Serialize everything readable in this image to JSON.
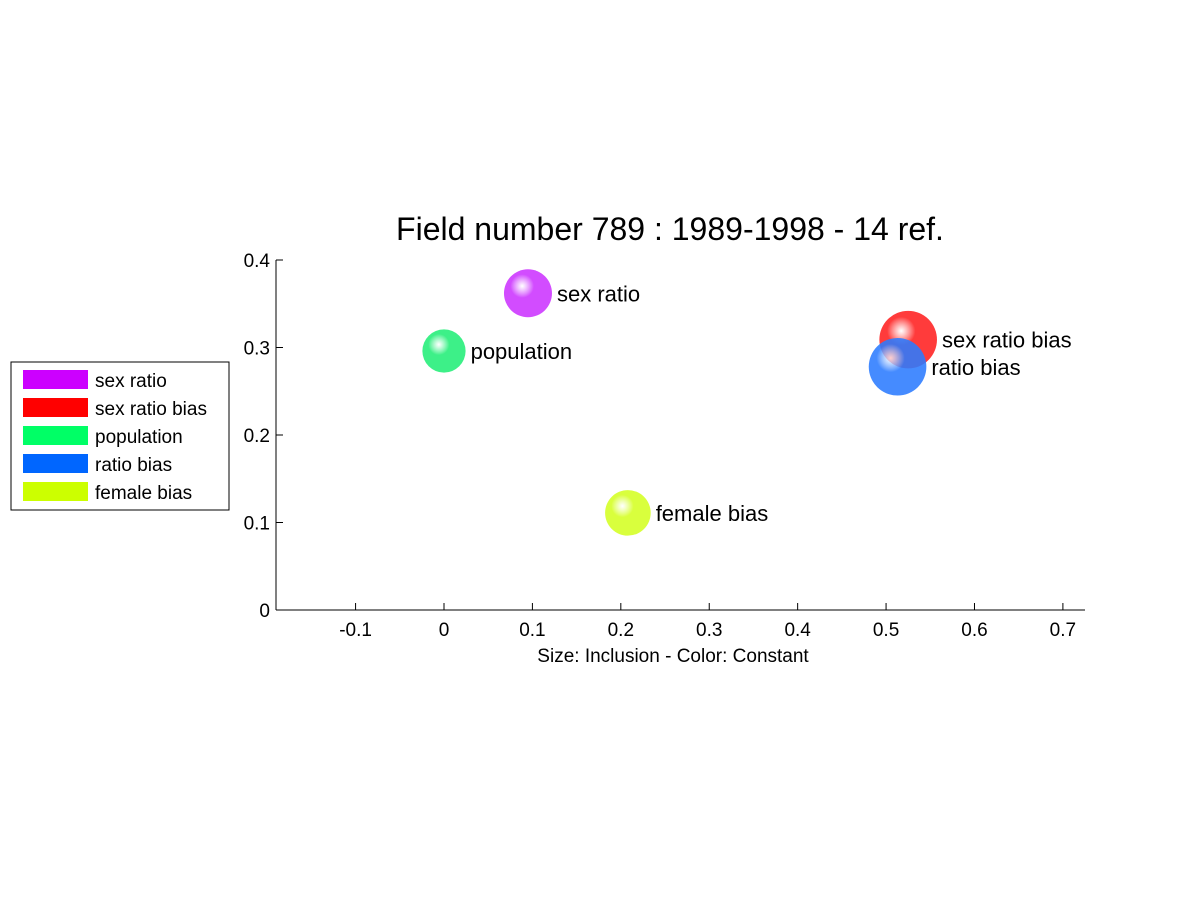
{
  "chart_data": {
    "type": "scatter",
    "title": "Field number 789 : 1989-1998  - 14 ref.",
    "xlabel": "Size: Inclusion - Color: Constant",
    "ylabel": "",
    "xlim": [
      -0.19,
      0.725
    ],
    "ylim": [
      0,
      0.4
    ],
    "xticks": [
      -0.1,
      0,
      0.1,
      0.2,
      0.3,
      0.4,
      0.5,
      0.6,
      0.7
    ],
    "xtick_labels": [
      "-0.1",
      "0",
      "0.1",
      "0.2",
      "0.3",
      "0.4",
      "0.5",
      "0.6",
      "0.7"
    ],
    "yticks": [
      0,
      0.1,
      0.2,
      0.3,
      0.4
    ],
    "ytick_labels": [
      "0",
      "0.1",
      "0.2",
      "0.3",
      "0.4"
    ],
    "grid": false,
    "legend_position": "left",
    "size_encoding": "Inclusion",
    "points": [
      {
        "label": "sex ratio",
        "x": 0.095,
        "y": 0.362,
        "size": 1.0,
        "color": "#cc33ff"
      },
      {
        "label": "population",
        "x": 0.0,
        "y": 0.296,
        "size": 0.9,
        "color": "#22ee77"
      },
      {
        "label": "sex ratio bias",
        "x": 0.525,
        "y": 0.309,
        "size": 1.2,
        "color": "#ff2020"
      },
      {
        "label": "ratio bias",
        "x": 0.513,
        "y": 0.278,
        "size": 1.2,
        "color": "#2b7bff"
      },
      {
        "label": "female bias",
        "x": 0.208,
        "y": 0.111,
        "size": 0.95,
        "color": "#d4ff22"
      }
    ],
    "legend": [
      {
        "label": "sex ratio",
        "color": "#cc00ff"
      },
      {
        "label": "sex ratio bias",
        "color": "#ff0000"
      },
      {
        "label": "population",
        "color": "#00ff66"
      },
      {
        "label": "ratio bias",
        "color": "#0066ff"
      },
      {
        "label": "female bias",
        "color": "#ccff00"
      }
    ]
  }
}
